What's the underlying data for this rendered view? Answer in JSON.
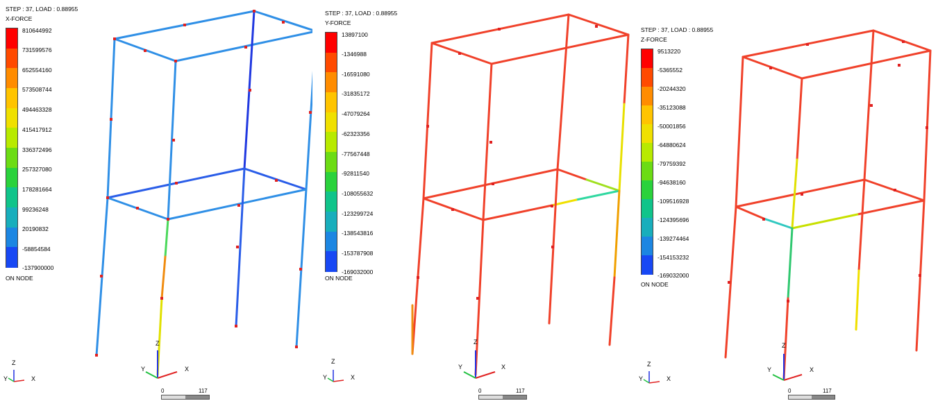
{
  "panels": [
    {
      "id": "x",
      "step_text": "STEP : 37, LOAD : 0.88955",
      "component": "X-FORCE",
      "levels": [
        "810644992",
        "731599576",
        "652554160",
        "573508744",
        "494463328",
        "415417912",
        "336372496",
        "257327080",
        "178281664",
        "99236248",
        "20190832",
        "-58854584",
        "-137900000"
      ],
      "footer": "ON NODE",
      "frame_color": "#2f8fe6",
      "scale": {
        "start": "0",
        "end": "117"
      }
    },
    {
      "id": "y",
      "step_text": "STEP : 37, LOAD : 0.88955",
      "component": "Y-FORCE",
      "levels": [
        "13897100",
        "-1346988",
        "-16591080",
        "-31835172",
        "-47079264",
        "-62323356",
        "-77567448",
        "-92811540",
        "-108055632",
        "-123299724",
        "-138543816",
        "-153787908",
        "-169032000"
      ],
      "footer": "ON NODE",
      "frame_color": "#f0412a",
      "scale": {
        "start": "0",
        "end": "117"
      }
    },
    {
      "id": "z",
      "step_text": "STEP : 37, LOAD : 0.88955",
      "component": "Z-FORCE",
      "levels": [
        "9513220",
        "-5365552",
        "-20244320",
        "-35123088",
        "-50001856",
        "-64880624",
        "-79759392",
        "-94638160",
        "-109516928",
        "-124395696",
        "-139274464",
        "-154153232",
        "-169032000"
      ],
      "footer": "ON NODE",
      "frame_color": "#f0412a",
      "scale": {
        "start": "0",
        "end": "117"
      }
    }
  ],
  "legend_colors": [
    "#ff0000",
    "#ff4a00",
    "#ff8c00",
    "#ffc400",
    "#f0e000",
    "#b8ea00",
    "#6cdc14",
    "#2ad23c",
    "#10c48a",
    "#18aebc",
    "#1c86e2",
    "#1848f4"
  ],
  "axis_labels": {
    "z": "Z",
    "y": "Y",
    "x": "X"
  }
}
